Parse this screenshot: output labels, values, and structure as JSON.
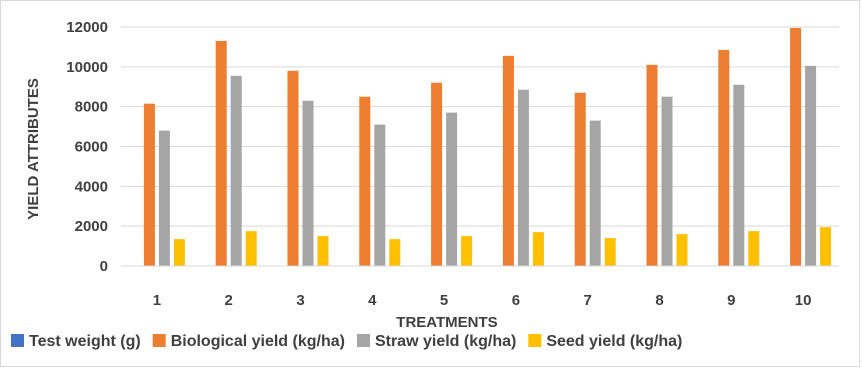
{
  "chart_data": {
    "type": "bar",
    "title": "",
    "xlabel": "TREATMENTS",
    "ylabel": "YIELD ATTRIBUTES",
    "ylim": [
      0,
      12000
    ],
    "yticks": [
      0,
      2000,
      4000,
      6000,
      8000,
      10000,
      12000
    ],
    "grid": true,
    "legend_position": "bottom",
    "categories": [
      "1",
      "2",
      "3",
      "4",
      "5",
      "6",
      "7",
      "8",
      "9",
      "10"
    ],
    "series": [
      {
        "name": "Test weight (g)",
        "color": "#4472c4",
        "values": [
          0,
          0,
          0,
          0,
          0,
          0,
          0,
          0,
          0,
          0
        ]
      },
      {
        "name": "Biological yield (kg/ha)",
        "color": "#ed7d31",
        "values": [
          8150,
          11300,
          9800,
          8500,
          9200,
          10550,
          8700,
          10100,
          10850,
          11950
        ]
      },
      {
        "name": "Straw yield (kg/ha)",
        "color": "#a5a5a5",
        "values": [
          6800,
          9550,
          8300,
          7100,
          7700,
          8850,
          7300,
          8500,
          9100,
          10050
        ]
      },
      {
        "name": "Seed yield (kg/ha)",
        "color": "#ffc000",
        "values": [
          1350,
          1750,
          1500,
          1350,
          1500,
          1700,
          1400,
          1600,
          1750,
          1950
        ]
      }
    ]
  }
}
